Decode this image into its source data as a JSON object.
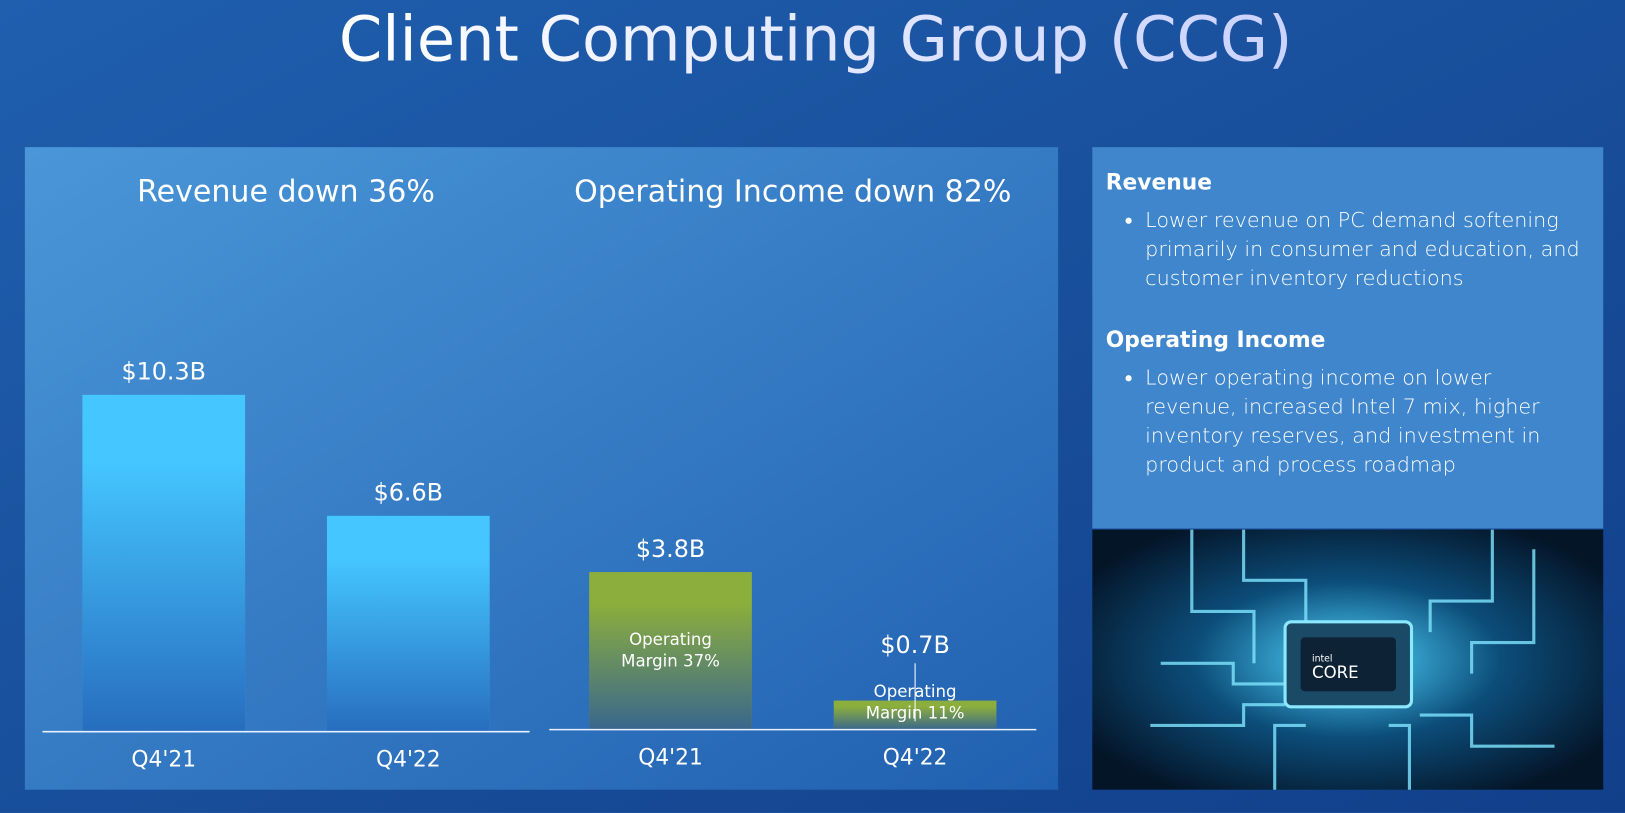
{
  "title": "Client Computing Group (CCG)",
  "chart_data": [
    {
      "type": "bar",
      "title": "Revenue down 36%",
      "categories": [
        "Q4'21",
        "Q4'22"
      ],
      "values": [
        10.3,
        6.6
      ],
      "value_labels": [
        "$10.3B",
        "$6.6B"
      ],
      "color": "#45c6ff"
    },
    {
      "type": "bar",
      "title": "Operating Income down 82%",
      "categories": [
        "Q4'21",
        "Q4'22"
      ],
      "values": [
        3.8,
        0.7
      ],
      "value_labels": [
        "$3.8B",
        "$0.7B"
      ],
      "color": "#8cae3c",
      "annotations": [
        [
          "Operating",
          "Margin 37%"
        ],
        [
          "Operating",
          "Margin 11%"
        ]
      ]
    }
  ],
  "sidebar": [
    {
      "heading": "Revenue",
      "bullets": [
        "Lower revenue on PC demand softening primarily in consumer and education, and customer inventory reductions"
      ]
    },
    {
      "heading": "Operating Income",
      "bullets": [
        "Lower operating income on lower revenue, increased Intel 7 mix, higher inventory reserves, and investment in product and process roadmap"
      ]
    }
  ],
  "image": {
    "brand": "intel",
    "product": "CORE"
  }
}
